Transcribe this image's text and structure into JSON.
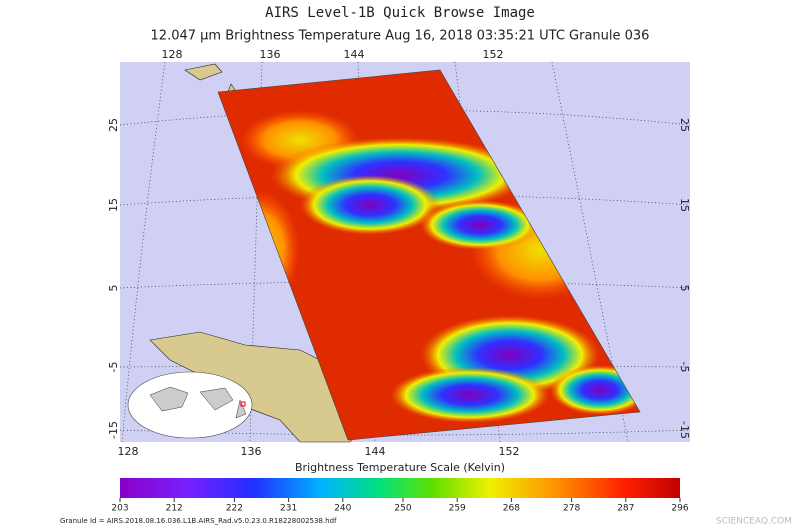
{
  "title": "AIRS Level-1B Quick Browse Image",
  "subtitle": "12.047 μm Brightness Temperature    Aug 16, 2018 03:35:21 UTC    Granule 036",
  "map": {
    "lon_ticks": [
      128,
      136,
      144,
      152
    ],
    "lat_ticks": [
      25,
      15,
      5,
      -5,
      -15
    ]
  },
  "colorbar": {
    "label": "Brightness Temperature Scale (Kelvin)",
    "range": [
      203,
      296
    ],
    "ticks": [
      203,
      212,
      222,
      231,
      240,
      250,
      259,
      268,
      278,
      287,
      296
    ]
  },
  "granule_id": "Granule Id = AIRS.2018.08.16.036.L1B.AIRS_Rad.v5.0.23.0.R18228002538.hdf",
  "watermark": "SCIENCEAQ.COM"
}
